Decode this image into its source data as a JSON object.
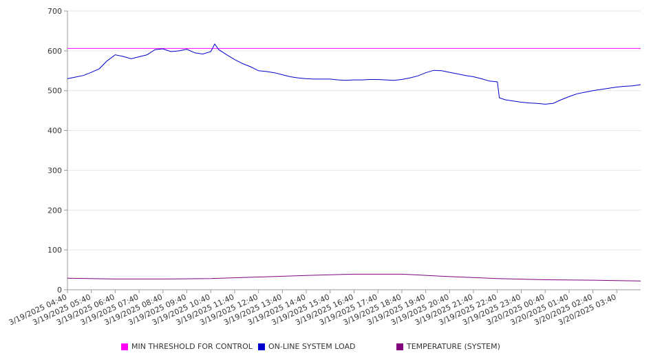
{
  "chart_data": {
    "type": "line",
    "title": "",
    "xlabel": "",
    "ylabel": "",
    "ylim": [
      0,
      700
    ],
    "yticks": [
      "0",
      "100",
      "200",
      "300",
      "400",
      "500",
      "600",
      "700"
    ],
    "grid": true,
    "legend_position": "bottom",
    "x_tick_labels": [
      "3/19/2025 04:40",
      "3/19/2025 05:40",
      "3/19/2025 06:40",
      "3/19/2025 07:40",
      "3/19/2025 08:40",
      "3/19/2025 09:40",
      "3/19/2025 10:40",
      "3/19/2025 11:40",
      "3/19/2025 12:40",
      "3/19/2025 13:40",
      "3/19/2025 14:40",
      "3/19/2025 15:40",
      "3/19/2025 16:40",
      "3/19/2025 17:40",
      "3/19/2025 18:40",
      "3/19/2025 19:40",
      "3/19/2025 20:40",
      "3/19/2025 21:40",
      "3/19/2025 22:40",
      "3/19/2025 23:40",
      "3/20/2025 00:40",
      "3/20/2025 01:40",
      "3/20/2025 02:40",
      "3/20/2025 03:40"
    ],
    "x_start": "3/19/2025 04:40",
    "x_end": "3/20/2025 04:40",
    "series": [
      {
        "name": "MIN THRESHOLD FOR CONTROL",
        "color": "#ff00ff",
        "x": [
          "3/19/2025 04:40",
          "3/20/2025 04:40"
        ],
        "y": [
          606,
          606
        ]
      },
      {
        "name": "ON-LINE SYSTEM LOAD",
        "color": "#0000cc",
        "x": [
          "3/19/2025 04:40",
          "3/19/2025 05:00",
          "3/19/2025 05:20",
          "3/19/2025 05:40",
          "3/19/2025 06:00",
          "3/19/2025 06:20",
          "3/19/2025 06:40",
          "3/19/2025 07:00",
          "3/19/2025 07:20",
          "3/19/2025 07:40",
          "3/19/2025 08:00",
          "3/19/2025 08:20",
          "3/19/2025 08:40",
          "3/19/2025 09:00",
          "3/19/2025 09:20",
          "3/19/2025 09:40",
          "3/19/2025 10:00",
          "3/19/2025 10:20",
          "3/19/2025 10:40",
          "3/19/2025 10:50",
          "3/19/2025 11:00",
          "3/19/2025 11:20",
          "3/19/2025 11:40",
          "3/19/2025 12:00",
          "3/19/2025 12:20",
          "3/19/2025 12:40",
          "3/19/2025 13:00",
          "3/19/2025 13:20",
          "3/19/2025 13:40",
          "3/19/2025 14:00",
          "3/19/2025 14:20",
          "3/19/2025 14:40",
          "3/19/2025 15:00",
          "3/19/2025 15:20",
          "3/19/2025 15:40",
          "3/19/2025 16:00",
          "3/19/2025 16:20",
          "3/19/2025 16:40",
          "3/19/2025 17:00",
          "3/19/2025 17:20",
          "3/19/2025 17:40",
          "3/19/2025 18:00",
          "3/19/2025 18:20",
          "3/19/2025 18:40",
          "3/19/2025 19:00",
          "3/19/2025 19:20",
          "3/19/2025 19:40",
          "3/19/2025 20:00",
          "3/19/2025 20:20",
          "3/19/2025 20:40",
          "3/19/2025 21:00",
          "3/19/2025 21:20",
          "3/19/2025 21:40",
          "3/19/2025 22:00",
          "3/19/2025 22:20",
          "3/19/2025 22:40",
          "3/19/2025 22:45",
          "3/19/2025 23:00",
          "3/19/2025 23:20",
          "3/19/2025 23:40",
          "3/20/2025 00:00",
          "3/20/2025 00:20",
          "3/20/2025 00:40",
          "3/20/2025 01:00",
          "3/20/2025 01:20",
          "3/20/2025 01:40",
          "3/20/2025 02:00",
          "3/20/2025 02:20",
          "3/20/2025 02:40",
          "3/20/2025 03:00",
          "3/20/2025 03:20",
          "3/20/2025 03:40",
          "3/20/2025 04:00",
          "3/20/2025 04:20",
          "3/20/2025 04:40"
        ],
        "y": [
          530,
          534,
          538,
          546,
          555,
          575,
          590,
          586,
          580,
          585,
          590,
          603,
          605,
          598,
          600,
          604,
          595,
          592,
          598,
          617,
          603,
          590,
          578,
          568,
          560,
          550,
          548,
          545,
          540,
          535,
          532,
          530,
          529,
          529,
          529,
          527,
          526,
          527,
          527,
          528,
          528,
          527,
          526,
          528,
          532,
          537,
          545,
          551,
          550,
          546,
          542,
          538,
          535,
          530,
          524,
          522,
          482,
          477,
          474,
          471,
          469,
          468,
          466,
          468,
          477,
          485,
          492,
          496,
          500,
          503,
          506,
          509,
          511,
          512,
          515
        ]
      },
      {
        "name": "TEMPERATURE (SYSTEM)",
        "color": "#800080",
        "x": [
          "3/19/2025 04:40",
          "3/19/2025 06:40",
          "3/19/2025 08:40",
          "3/19/2025 10:40",
          "3/19/2025 12:40",
          "3/19/2025 14:40",
          "3/19/2025 16:40",
          "3/19/2025 18:40",
          "3/19/2025 20:40",
          "3/19/2025 22:40",
          "3/20/2025 00:40",
          "3/20/2025 02:40",
          "3/20/2025 04:40"
        ],
        "y": [
          29,
          27,
          27,
          28,
          32,
          36,
          39,
          39,
          33,
          28,
          25,
          24,
          22
        ]
      }
    ]
  }
}
